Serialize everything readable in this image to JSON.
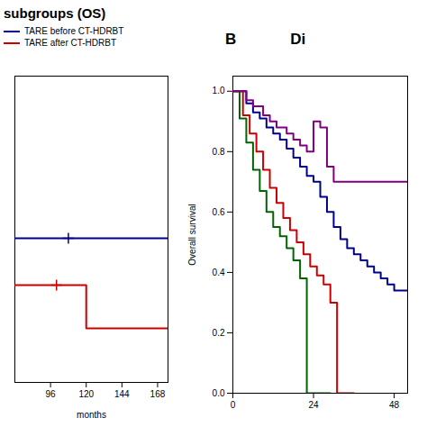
{
  "chart_data": [
    {
      "type": "step",
      "title": "subgroups (OS)",
      "xlabel": "months",
      "xlim": [
        72,
        175
      ],
      "ylim": [
        0.0,
        0.85
      ],
      "xticks": [
        96,
        120,
        144,
        168
      ],
      "yticks": [],
      "tick_labels": "x",
      "legend": "upper left",
      "series": [
        {
          "name": "TARE before CT-HDRBT",
          "color": "#00008B",
          "x": [
            72,
            108,
            175
          ],
          "values": [
            0.4,
            0.4,
            0.4
          ],
          "marker": "plus",
          "censors": {
            "x": [
              108
            ],
            "y": [
              0.4
            ]
          }
        },
        {
          "name": "TARE after CT-HDRBT",
          "color": "#CC0000",
          "x": [
            72,
            100,
            120,
            120,
            175
          ],
          "values": [
            0.27,
            0.27,
            0.27,
            0.15,
            0.15
          ],
          "marker": "plus",
          "censors": {
            "x": [
              100
            ],
            "y": [
              0.27
            ]
          }
        }
      ]
    },
    {
      "type": "step",
      "ylabel": "Overall survival",
      "annotations": [
        "B",
        "Di"
      ],
      "xlim": [
        0,
        52
      ],
      "ylim": [
        0.0,
        1.05
      ],
      "xticks": [
        0,
        24,
        48
      ],
      "yticks": [
        {
          "value": 0.0,
          "label": "0.0"
        },
        0.2,
        0.4,
        0.6,
        0.8,
        {
          "value": 1.0,
          "label": "1.0"
        }
      ],
      "series": [
        {
          "color": "#00008B",
          "x": [
            0,
            4,
            6,
            8,
            10,
            12,
            14,
            16,
            18,
            20,
            22,
            24,
            26,
            28,
            30,
            32,
            34,
            36,
            38,
            40,
            42,
            44,
            46,
            48,
            52
          ],
          "values": [
            1.0,
            0.96,
            0.93,
            0.91,
            0.88,
            0.86,
            0.84,
            0.81,
            0.78,
            0.75,
            0.72,
            0.7,
            0.65,
            0.6,
            0.55,
            0.51,
            0.48,
            0.46,
            0.44,
            0.42,
            0.4,
            0.38,
            0.36,
            0.34,
            0.34
          ]
        },
        {
          "color": "#CC0000",
          "x": [
            0,
            3,
            5,
            7,
            9,
            11,
            13,
            15,
            17,
            19,
            21,
            23,
            25,
            27,
            29,
            31,
            33,
            35,
            36
          ],
          "values": [
            1.0,
            0.92,
            0.86,
            0.8,
            0.74,
            0.68,
            0.63,
            0.58,
            0.54,
            0.5,
            0.46,
            0.42,
            0.39,
            0.36,
            0.3,
            0.0,
            0.0,
            0.0,
            0.0
          ]
        },
        {
          "color": "#006400",
          "x": [
            0,
            2,
            4,
            6,
            8,
            10,
            12,
            14,
            16,
            18,
            20,
            22,
            24,
            26,
            28,
            29
          ],
          "values": [
            1.0,
            0.91,
            0.83,
            0.74,
            0.67,
            0.6,
            0.55,
            0.52,
            0.48,
            0.44,
            0.38,
            0.0,
            0.0,
            0.0,
            0.0,
            0.0
          ]
        },
        {
          "color": "#800080",
          "x": [
            0,
            4,
            6,
            9,
            11,
            13,
            16,
            18,
            20,
            22,
            24,
            26,
            28,
            30,
            52
          ],
          "values": [
            1.0,
            0.97,
            0.95,
            0.92,
            0.9,
            0.88,
            0.86,
            0.84,
            0.82,
            0.8,
            0.9,
            0.88,
            0.75,
            0.7,
            0.7
          ]
        }
      ]
    }
  ]
}
